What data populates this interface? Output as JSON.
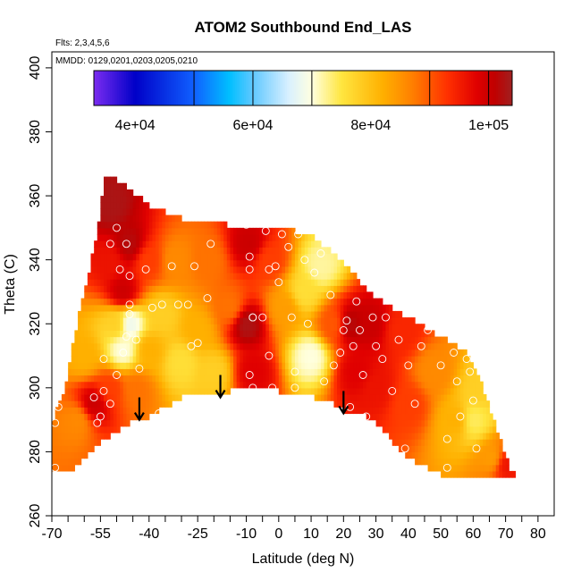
{
  "chart_data": {
    "type": "heatmap",
    "title": "ATOM2 Southbound End_LAS",
    "flights_label": "Flts: 2,3,4,5,6",
    "dates_label": "MMDD: 0129,0201,0203,0205,0210",
    "xlabel": "Latitude (deg N)",
    "ylabel": "Theta (C)",
    "xlim": [
      -70,
      85
    ],
    "ylim": [
      260,
      405
    ],
    "x_ticks": [
      -70,
      -55,
      -40,
      -25,
      -10,
      0,
      10,
      20,
      30,
      40,
      50,
      60,
      70,
      80
    ],
    "x_minor_ticks": [
      -65,
      -60,
      -50,
      -45,
      -35,
      -30,
      -20,
      -15,
      -5,
      5,
      15,
      25,
      35,
      45,
      55,
      65,
      75
    ],
    "y_ticks": [
      260,
      280,
      300,
      320,
      340,
      360,
      380,
      400
    ],
    "colorbar": {
      "range": [
        33000,
        104000
      ],
      "tick_values": [
        40000,
        60000,
        80000,
        100000
      ],
      "tick_labels": [
        "4e+04",
        "6e+04",
        "8e+04",
        "1e+05"
      ],
      "divisions": [
        50000,
        60000,
        70000,
        90000,
        100000
      ],
      "color_stops": [
        {
          "v": 33000,
          "c": "#7b2cf0"
        },
        {
          "v": 40000,
          "c": "#0000c8"
        },
        {
          "v": 50000,
          "c": "#1060ff"
        },
        {
          "v": 56000,
          "c": "#00bfff"
        },
        {
          "v": 60000,
          "c": "#60c8ff"
        },
        {
          "v": 66000,
          "c": "#d8f0ff"
        },
        {
          "v": 70000,
          "c": "#ffffe0"
        },
        {
          "v": 75000,
          "c": "#ffe640"
        },
        {
          "v": 82000,
          "c": "#ffb000"
        },
        {
          "v": 87000,
          "c": "#ff8000"
        },
        {
          "v": 93000,
          "c": "#ff3000"
        },
        {
          "v": 98000,
          "c": "#e00000"
        },
        {
          "v": 101000,
          "c": "#c00000"
        },
        {
          "v": 104000,
          "c": "#a02020"
        }
      ]
    },
    "domain_top": [
      [
        -55,
        353
      ],
      [
        -54,
        365
      ],
      [
        -50,
        365
      ],
      [
        -40,
        357
      ],
      [
        -30,
        353
      ],
      [
        -20,
        352
      ],
      [
        -12,
        350
      ],
      [
        -5,
        349
      ],
      [
        5,
        349
      ],
      [
        10,
        348
      ],
      [
        20,
        339
      ],
      [
        30,
        328
      ],
      [
        40,
        322
      ],
      [
        50,
        316
      ],
      [
        58,
        311
      ],
      [
        62,
        303
      ],
      [
        68,
        285
      ],
      [
        72,
        273
      ]
    ],
    "domain_bottom": [
      [
        -70,
        274
      ],
      [
        -64,
        274
      ],
      [
        -55,
        283
      ],
      [
        -45,
        290
      ],
      [
        -40,
        291
      ],
      [
        -30,
        297
      ],
      [
        -20,
        298
      ],
      [
        -15,
        299
      ],
      [
        -8,
        300
      ],
      [
        0,
        299
      ],
      [
        8,
        298
      ],
      [
        15,
        296
      ],
      [
        20,
        293
      ],
      [
        25,
        292
      ],
      [
        30,
        289
      ],
      [
        40,
        278
      ],
      [
        50,
        273
      ],
      [
        60,
        273
      ],
      [
        72,
        273
      ]
    ],
    "domain_left": [
      [
        -70,
        274
      ],
      [
        -70,
        289
      ],
      [
        -66,
        300
      ],
      [
        -63,
        316
      ],
      [
        -60,
        330
      ],
      [
        -56,
        348
      ],
      [
        -54,
        365
      ]
    ],
    "field_points": [
      {
        "lat": -62,
        "theta": 290,
        "v": 86000
      },
      {
        "lat": -60,
        "theta": 310,
        "v": 82000
      },
      {
        "lat": -57,
        "theta": 295,
        "v": 100000
      },
      {
        "lat": -52,
        "theta": 300,
        "v": 92000
      },
      {
        "lat": -50,
        "theta": 320,
        "v": 78000
      },
      {
        "lat": -48,
        "theta": 312,
        "v": 70000
      },
      {
        "lat": -46,
        "theta": 320,
        "v": 68000
      },
      {
        "lat": -52,
        "theta": 340,
        "v": 96000
      },
      {
        "lat": -48,
        "theta": 330,
        "v": 100000
      },
      {
        "lat": -46,
        "theta": 345,
        "v": 102000
      },
      {
        "lat": -52,
        "theta": 357,
        "v": 103000
      },
      {
        "lat": -44,
        "theta": 300,
        "v": 88000
      },
      {
        "lat": -40,
        "theta": 312,
        "v": 82000
      },
      {
        "lat": -36,
        "theta": 323,
        "v": 78000
      },
      {
        "lat": -40,
        "theta": 340,
        "v": 92000
      },
      {
        "lat": -32,
        "theta": 340,
        "v": 86000
      },
      {
        "lat": -30,
        "theta": 308,
        "v": 76000
      },
      {
        "lat": -25,
        "theta": 318,
        "v": 82000
      },
      {
        "lat": -22,
        "theta": 340,
        "v": 88000
      },
      {
        "lat": -20,
        "theta": 305,
        "v": 78000
      },
      {
        "lat": -15,
        "theta": 325,
        "v": 88000
      },
      {
        "lat": -10,
        "theta": 320,
        "v": 103000
      },
      {
        "lat": -9,
        "theta": 345,
        "v": 100000
      },
      {
        "lat": -8,
        "theta": 305,
        "v": 98000
      },
      {
        "lat": -3,
        "theta": 340,
        "v": 92000
      },
      {
        "lat": 2,
        "theta": 325,
        "v": 84000
      },
      {
        "lat": 8,
        "theta": 330,
        "v": 76000
      },
      {
        "lat": 10,
        "theta": 310,
        "v": 70000
      },
      {
        "lat": 13,
        "theta": 338,
        "v": 72000
      },
      {
        "lat": 17,
        "theta": 320,
        "v": 90000
      },
      {
        "lat": 22,
        "theta": 320,
        "v": 102000
      },
      {
        "lat": 24,
        "theta": 305,
        "v": 98000
      },
      {
        "lat": 28,
        "theta": 320,
        "v": 100000
      },
      {
        "lat": 30,
        "theta": 300,
        "v": 96000
      },
      {
        "lat": 38,
        "theta": 318,
        "v": 94000
      },
      {
        "lat": 40,
        "theta": 295,
        "v": 92000
      },
      {
        "lat": 48,
        "theta": 305,
        "v": 86000
      },
      {
        "lat": 55,
        "theta": 290,
        "v": 82000
      },
      {
        "lat": 60,
        "theta": 290,
        "v": 74000
      },
      {
        "lat": 62,
        "theta": 300,
        "v": 78000
      },
      {
        "lat": 66,
        "theta": 278,
        "v": 84000
      },
      {
        "lat": 70,
        "theta": 276,
        "v": 96000
      }
    ],
    "sample_points": [
      {
        "lat": -69,
        "theta": 289
      },
      {
        "lat": -68,
        "theta": 294
      },
      {
        "lat": -69,
        "theta": 275
      },
      {
        "lat": -57,
        "theta": 297
      },
      {
        "lat": -55,
        "theta": 291
      },
      {
        "lat": -56,
        "theta": 289
      },
      {
        "lat": -54,
        "theta": 299
      },
      {
        "lat": -52,
        "theta": 295
      },
      {
        "lat": -54,
        "theta": 309
      },
      {
        "lat": -50,
        "theta": 304
      },
      {
        "lat": -48,
        "theta": 311
      },
      {
        "lat": -47,
        "theta": 316
      },
      {
        "lat": -46,
        "theta": 326
      },
      {
        "lat": -46,
        "theta": 323
      },
      {
        "lat": -46,
        "theta": 335
      },
      {
        "lat": -52,
        "theta": 345
      },
      {
        "lat": -50,
        "theta": 350
      },
      {
        "lat": -47,
        "theta": 345
      },
      {
        "lat": -49,
        "theta": 337
      },
      {
        "lat": -44,
        "theta": 315
      },
      {
        "lat": -43,
        "theta": 306
      },
      {
        "lat": -41,
        "theta": 337
      },
      {
        "lat": -39,
        "theta": 325
      },
      {
        "lat": -37,
        "theta": 292
      },
      {
        "lat": -36,
        "theta": 326
      },
      {
        "lat": -33,
        "theta": 338
      },
      {
        "lat": -31,
        "theta": 326
      },
      {
        "lat": -28,
        "theta": 326
      },
      {
        "lat": -27,
        "theta": 313
      },
      {
        "lat": -26,
        "theta": 338
      },
      {
        "lat": -22,
        "theta": 328
      },
      {
        "lat": -21,
        "theta": 345
      },
      {
        "lat": -28,
        "theta": 294
      },
      {
        "lat": -25,
        "theta": 314
      },
      {
        "lat": -10,
        "theta": 351
      },
      {
        "lat": -9,
        "theta": 341
      },
      {
        "lat": -9,
        "theta": 337
      },
      {
        "lat": -8,
        "theta": 322
      },
      {
        "lat": -8,
        "theta": 322
      },
      {
        "lat": -9,
        "theta": 304
      },
      {
        "lat": -8,
        "theta": 300
      },
      {
        "lat": -7,
        "theta": 291
      },
      {
        "lat": -4,
        "theta": 349
      },
      {
        "lat": -3,
        "theta": 337
      },
      {
        "lat": -5,
        "theta": 322
      },
      {
        "lat": -3,
        "theta": 310
      },
      {
        "lat": -2,
        "theta": 300
      },
      {
        "lat": -1,
        "theta": 338
      },
      {
        "lat": 0,
        "theta": 333
      },
      {
        "lat": 1,
        "theta": 348
      },
      {
        "lat": 3,
        "theta": 344
      },
      {
        "lat": 4,
        "theta": 322
      },
      {
        "lat": 5,
        "theta": 305
      },
      {
        "lat": 5,
        "theta": 300
      },
      {
        "lat": 6,
        "theta": 348
      },
      {
        "lat": 8,
        "theta": 340
      },
      {
        "lat": 9,
        "theta": 320
      },
      {
        "lat": 11,
        "theta": 336
      },
      {
        "lat": 13,
        "theta": 342
      },
      {
        "lat": 14,
        "theta": 302
      },
      {
        "lat": 16,
        "theta": 329
      },
      {
        "lat": 17,
        "theta": 307
      },
      {
        "lat": 19,
        "theta": 311
      },
      {
        "lat": 20,
        "theta": 318
      },
      {
        "lat": 21,
        "theta": 321
      },
      {
        "lat": 22,
        "theta": 294
      },
      {
        "lat": 23,
        "theta": 313
      },
      {
        "lat": 24,
        "theta": 327
      },
      {
        "lat": 25,
        "theta": 318
      },
      {
        "lat": 26,
        "theta": 304
      },
      {
        "lat": 27,
        "theta": 291
      },
      {
        "lat": 29,
        "theta": 322
      },
      {
        "lat": 30,
        "theta": 313
      },
      {
        "lat": 32,
        "theta": 309
      },
      {
        "lat": 33,
        "theta": 322
      },
      {
        "lat": 35,
        "theta": 299
      },
      {
        "lat": 37,
        "theta": 315
      },
      {
        "lat": 39,
        "theta": 281
      },
      {
        "lat": 40,
        "theta": 307
      },
      {
        "lat": 42,
        "theta": 295
      },
      {
        "lat": 44,
        "theta": 313
      },
      {
        "lat": 46,
        "theta": 318
      },
      {
        "lat": 48,
        "theta": 320
      },
      {
        "lat": 50,
        "theta": 307
      },
      {
        "lat": 52,
        "theta": 284
      },
      {
        "lat": 52,
        "theta": 275
      },
      {
        "lat": 54,
        "theta": 311
      },
      {
        "lat": 55,
        "theta": 302
      },
      {
        "lat": 56,
        "theta": 291
      },
      {
        "lat": 58,
        "theta": 309
      },
      {
        "lat": 59,
        "theta": 305
      },
      {
        "lat": 60,
        "theta": 296
      },
      {
        "lat": 61,
        "theta": 281
      }
    ],
    "arrows": [
      {
        "lat": -43,
        "theta_start": 297,
        "theta_end": 290
      },
      {
        "lat": -18,
        "theta_start": 304,
        "theta_end": 297
      },
      {
        "lat": 20,
        "theta_start": 299,
        "theta_end": 292
      }
    ]
  }
}
